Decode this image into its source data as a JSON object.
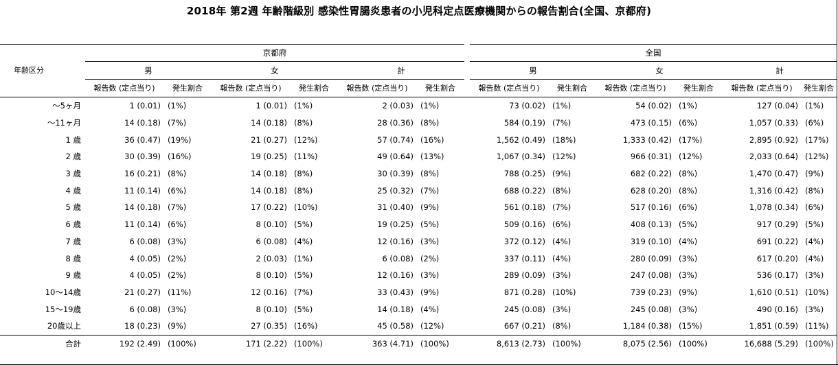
{
  "title": "2018年 第2週 年齢階級別 感染性胃腸炎患者の小児科定点医療機関からの報告割合(全国、京都府)",
  "header": {
    "age_label": "年齢区分",
    "region1": "京都府",
    "region2": "全国",
    "sex_m": "男",
    "sex_f": "女",
    "sex_total": "計",
    "col_count": "報告数 (定点当り)",
    "col_rate": "発生割合"
  },
  "rows": [
    {
      "age": "～5ヶ月",
      "kyoto_m_n": "1 (0.01)",
      "kyoto_m_r": "(1%)",
      "kyoto_f_n": "1 (0.01)",
      "kyoto_f_r": "(1%)",
      "kyoto_t_n": "2 (0.03)",
      "kyoto_t_r": "(1%)",
      "all_m_n": "73 (0.02)",
      "all_m_r": "(1%)",
      "all_f_n": "54 (0.02)",
      "all_f_r": "(1%)",
      "all_t_n": "127 (0.04)",
      "all_t_r": "(1%)"
    },
    {
      "age": "～11ヶ月",
      "kyoto_m_n": "14 (0.18)",
      "kyoto_m_r": "(7%)",
      "kyoto_f_n": "14 (0.18)",
      "kyoto_f_r": "(8%)",
      "kyoto_t_n": "28 (0.36)",
      "kyoto_t_r": "(8%)",
      "all_m_n": "584 (0.19)",
      "all_m_r": "(7%)",
      "all_f_n": "473 (0.15)",
      "all_f_r": "(6%)",
      "all_t_n": "1,057 (0.33)",
      "all_t_r": "(6%)"
    },
    {
      "age": "1 歳",
      "kyoto_m_n": "36 (0.47)",
      "kyoto_m_r": "(19%)",
      "kyoto_f_n": "21 (0.27)",
      "kyoto_f_r": "(12%)",
      "kyoto_t_n": "57 (0.74)",
      "kyoto_t_r": "(16%)",
      "all_m_n": "1,562 (0.49)",
      "all_m_r": "(18%)",
      "all_f_n": "1,333 (0.42)",
      "all_f_r": "(17%)",
      "all_t_n": "2,895 (0.92)",
      "all_t_r": "(17%)"
    },
    {
      "age": "2 歳",
      "kyoto_m_n": "30 (0.39)",
      "kyoto_m_r": "(16%)",
      "kyoto_f_n": "19 (0.25)",
      "kyoto_f_r": "(11%)",
      "kyoto_t_n": "49 (0.64)",
      "kyoto_t_r": "(13%)",
      "all_m_n": "1,067 (0.34)",
      "all_m_r": "(12%)",
      "all_f_n": "966 (0.31)",
      "all_f_r": "(12%)",
      "all_t_n": "2,033 (0.64)",
      "all_t_r": "(12%)"
    },
    {
      "age": "3 歳",
      "kyoto_m_n": "16 (0.21)",
      "kyoto_m_r": "(8%)",
      "kyoto_f_n": "14 (0.18)",
      "kyoto_f_r": "(8%)",
      "kyoto_t_n": "30 (0.39)",
      "kyoto_t_r": "(8%)",
      "all_m_n": "788 (0.25)",
      "all_m_r": "(9%)",
      "all_f_n": "682 (0.22)",
      "all_f_r": "(8%)",
      "all_t_n": "1,470 (0.47)",
      "all_t_r": "(9%)"
    },
    {
      "age": "4 歳",
      "kyoto_m_n": "11 (0.14)",
      "kyoto_m_r": "(6%)",
      "kyoto_f_n": "14 (0.18)",
      "kyoto_f_r": "(8%)",
      "kyoto_t_n": "25 (0.32)",
      "kyoto_t_r": "(7%)",
      "all_m_n": "688 (0.22)",
      "all_m_r": "(8%)",
      "all_f_n": "628 (0.20)",
      "all_f_r": "(8%)",
      "all_t_n": "1,316 (0.42)",
      "all_t_r": "(8%)"
    },
    {
      "age": "5 歳",
      "kyoto_m_n": "14 (0.18)",
      "kyoto_m_r": "(7%)",
      "kyoto_f_n": "17 (0.22)",
      "kyoto_f_r": "(10%)",
      "kyoto_t_n": "31 (0.40)",
      "kyoto_t_r": "(9%)",
      "all_m_n": "561 (0.18)",
      "all_m_r": "(7%)",
      "all_f_n": "517 (0.16)",
      "all_f_r": "(6%)",
      "all_t_n": "1,078 (0.34)",
      "all_t_r": "(6%)"
    },
    {
      "age": "6 歳",
      "kyoto_m_n": "11 (0.14)",
      "kyoto_m_r": "(6%)",
      "kyoto_f_n": "8 (0.10)",
      "kyoto_f_r": "(5%)",
      "kyoto_t_n": "19 (0.25)",
      "kyoto_t_r": "(5%)",
      "all_m_n": "509 (0.16)",
      "all_m_r": "(6%)",
      "all_f_n": "408 (0.13)",
      "all_f_r": "(5%)",
      "all_t_n": "917 (0.29)",
      "all_t_r": "(5%)"
    },
    {
      "age": "7 歳",
      "kyoto_m_n": "6 (0.08)",
      "kyoto_m_r": "(3%)",
      "kyoto_f_n": "6 (0.08)",
      "kyoto_f_r": "(4%)",
      "kyoto_t_n": "12 (0.16)",
      "kyoto_t_r": "(3%)",
      "all_m_n": "372 (0.12)",
      "all_m_r": "(4%)",
      "all_f_n": "319 (0.10)",
      "all_f_r": "(4%)",
      "all_t_n": "691 (0.22)",
      "all_t_r": "(4%)"
    },
    {
      "age": "8 歳",
      "kyoto_m_n": "4 (0.05)",
      "kyoto_m_r": "(2%)",
      "kyoto_f_n": "2 (0.03)",
      "kyoto_f_r": "(1%)",
      "kyoto_t_n": "6 (0.08)",
      "kyoto_t_r": "(2%)",
      "all_m_n": "337 (0.11)",
      "all_m_r": "(4%)",
      "all_f_n": "280 (0.09)",
      "all_f_r": "(3%)",
      "all_t_n": "617 (0.20)",
      "all_t_r": "(4%)"
    },
    {
      "age": "9 歳",
      "kyoto_m_n": "4 (0.05)",
      "kyoto_m_r": "(2%)",
      "kyoto_f_n": "8 (0.10)",
      "kyoto_f_r": "(5%)",
      "kyoto_t_n": "12 (0.16)",
      "kyoto_t_r": "(3%)",
      "all_m_n": "289 (0.09)",
      "all_m_r": "(3%)",
      "all_f_n": "247 (0.08)",
      "all_f_r": "(3%)",
      "all_t_n": "536 (0.17)",
      "all_t_r": "(3%)"
    },
    {
      "age": "10～14歳",
      "kyoto_m_n": "21 (0.27)",
      "kyoto_m_r": "(11%)",
      "kyoto_f_n": "12 (0.16)",
      "kyoto_f_r": "(7%)",
      "kyoto_t_n": "33 (0.43)",
      "kyoto_t_r": "(9%)",
      "all_m_n": "871 (0.28)",
      "all_m_r": "(10%)",
      "all_f_n": "739 (0.23)",
      "all_f_r": "(9%)",
      "all_t_n": "1,610 (0.51)",
      "all_t_r": "(10%)"
    },
    {
      "age": "15～19歳",
      "kyoto_m_n": "6 (0.08)",
      "kyoto_m_r": "(3%)",
      "kyoto_f_n": "8 (0.10)",
      "kyoto_f_r": "(5%)",
      "kyoto_t_n": "14 (0.18)",
      "kyoto_t_r": "(4%)",
      "all_m_n": "245 (0.08)",
      "all_m_r": "(3%)",
      "all_f_n": "245 (0.08)",
      "all_f_r": "(3%)",
      "all_t_n": "490 (0.16)",
      "all_t_r": "(3%)"
    },
    {
      "age": "20歳以上",
      "kyoto_m_n": "18 (0.23)",
      "kyoto_m_r": "(9%)",
      "kyoto_f_n": "27 (0.35)",
      "kyoto_f_r": "(16%)",
      "kyoto_t_n": "45 (0.58)",
      "kyoto_t_r": "(12%)",
      "all_m_n": "667 (0.21)",
      "all_m_r": "(8%)",
      "all_f_n": "1,184 (0.38)",
      "all_f_r": "(15%)",
      "all_t_n": "1,851 (0.59)",
      "all_t_r": "(11%)"
    },
    {
      "age": "合計",
      "kyoto_m_n": "192 (2.49)",
      "kyoto_m_r": "(100%)",
      "kyoto_f_n": "171 (2.22)",
      "kyoto_f_r": "(100%)",
      "kyoto_t_n": "363 (4.71)",
      "kyoto_t_r": "(100%)",
      "all_m_n": "8,613 (2.73)",
      "all_m_r": "(100%)",
      "all_f_n": "8,075 (2.56)",
      "all_f_r": "(100%)",
      "all_t_n": "16,688 (5.29)",
      "all_t_r": "(100%)"
    }
  ]
}
